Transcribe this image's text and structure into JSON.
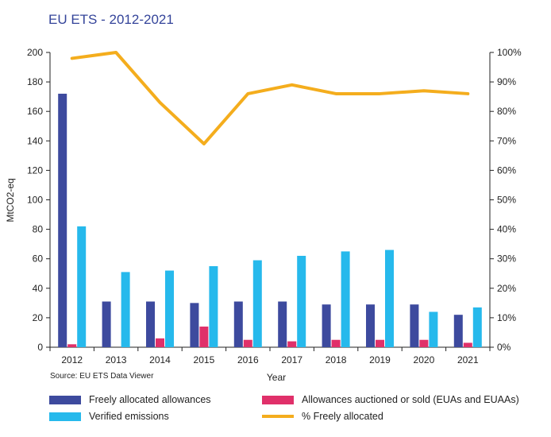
{
  "chart_data": {
    "type": "bar",
    "title": "EU ETS - 2012-2021",
    "xlabel": "Year",
    "ylabel": "MtCO2-eq",
    "y2label": "",
    "source": "Source: EU ETS Data Viewer",
    "categories": [
      "2012",
      "2013",
      "2014",
      "2015",
      "2016",
      "2017",
      "2018",
      "2019",
      "2020",
      "2021"
    ],
    "ylim": [
      0,
      200
    ],
    "yticks": [
      "0",
      "20",
      "40",
      "60",
      "80",
      "100",
      "120",
      "140",
      "160",
      "180",
      "200"
    ],
    "y2lim": [
      0,
      100
    ],
    "y2ticks": [
      "0%",
      "10%",
      "20%",
      "30%",
      "40%",
      "50%",
      "60%",
      "70%",
      "80%",
      "90%",
      "100%"
    ],
    "grid": false,
    "legend": "bottom",
    "series": [
      {
        "name": "Freely allocated allowances",
        "kind": "bar",
        "axis": "left",
        "color": "#3d4a9e",
        "values": [
          172,
          31,
          31,
          30,
          31,
          31,
          29,
          29,
          29,
          22
        ]
      },
      {
        "name": "Allowances auctioned or sold (EUAs and EUAAs)",
        "kind": "bar",
        "axis": "left",
        "color": "#e0306a",
        "values": [
          2,
          0,
          6,
          14,
          5,
          4,
          5,
          5,
          5,
          3
        ]
      },
      {
        "name": "Verified emissions",
        "kind": "bar",
        "axis": "left",
        "color": "#26b9ec",
        "values": [
          82,
          51,
          52,
          55,
          59,
          62,
          65,
          66,
          24,
          27
        ]
      },
      {
        "name": "% Freely allocated",
        "kind": "line",
        "axis": "right",
        "color": "#f4ad1d",
        "values": [
          98,
          100,
          83,
          69,
          86,
          89,
          86,
          86,
          87,
          86
        ]
      }
    ]
  }
}
